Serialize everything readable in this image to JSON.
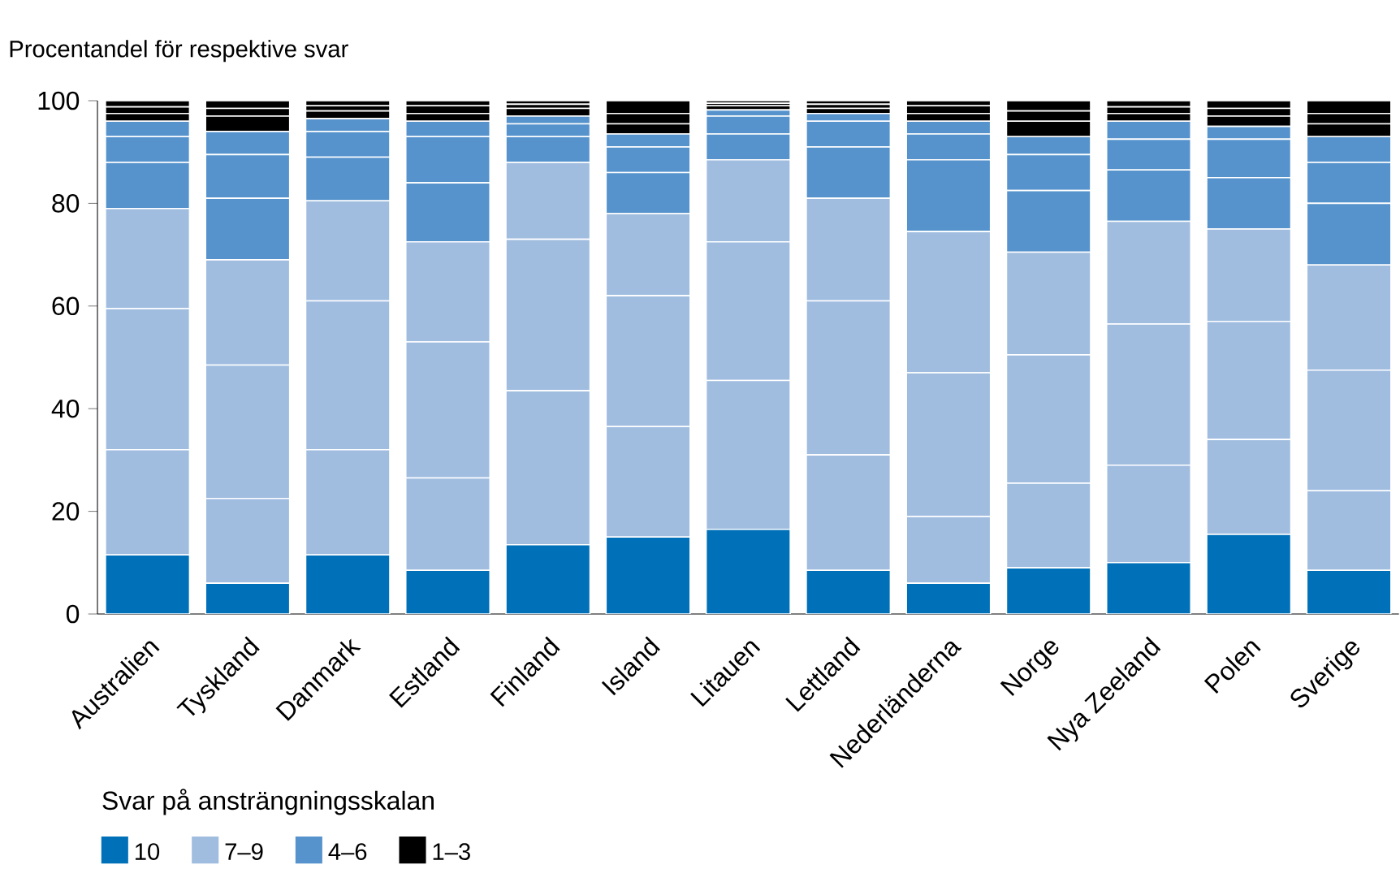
{
  "chart_data": {
    "type": "bar",
    "stacked": true,
    "ylabel": "Procentandel för respektive svar",
    "legend_title": "Svar på ansträngningsskalan",
    "categories": [
      "Australien",
      "Tyskland",
      "Danmark",
      "Estland",
      "Finland",
      "Island",
      "Litauen",
      "Lettland",
      "Nederländerna",
      "Norge",
      "Nya Zeeland",
      "Polen",
      "Sverige"
    ],
    "series": [
      {
        "name": "10",
        "color": "#0070b8",
        "values": [
          11.5,
          6,
          11.5,
          8.5,
          13.5,
          15,
          16.5,
          8.5,
          6,
          9,
          10,
          15.5,
          8.5
        ]
      },
      {
        "name": "7–9",
        "color": "#a0bde0",
        "values": [
          20.5,
          16.5,
          20.5,
          18,
          30,
          21.5,
          29,
          22.5,
          13,
          16.5,
          19,
          18.5,
          15.5
        ]
      },
      {
        "color": "#a0bde0",
        "values": [
          27.5,
          26,
          29,
          26.5,
          29.5,
          25.5,
          27,
          30,
          28,
          25,
          27.5,
          23,
          23.5
        ]
      },
      {
        "color": "#a0bde0",
        "values": [
          19.5,
          20.5,
          19.5,
          19.5,
          15,
          16,
          16,
          20,
          27.5,
          20,
          20,
          18,
          20.5
        ]
      },
      {
        "name": "4–6",
        "color": "#5693cc",
        "values": [
          9,
          12,
          8.5,
          11.5,
          5,
          8,
          5,
          10,
          14,
          12,
          10,
          10,
          12
        ]
      },
      {
        "color": "#5693cc",
        "values": [
          5,
          8.5,
          5,
          9,
          2.5,
          5,
          3.5,
          5,
          5,
          7,
          6,
          7.5,
          8
        ]
      },
      {
        "color": "#5693cc",
        "values": [
          3,
          4.5,
          2.5,
          3,
          1.5,
          2.5,
          1.2,
          1.5,
          2.5,
          3.5,
          3.5,
          2.5,
          5
        ]
      },
      {
        "name": "1–3",
        "color": "#000000",
        "values": [
          1.5,
          3,
          1.5,
          1.5,
          1.5,
          2,
          0.8,
          1,
          1.5,
          3,
          1.5,
          2,
          2.5
        ]
      },
      {
        "color": "#000000",
        "values": [
          1.3,
          1.5,
          1,
          1.5,
          0.8,
          2,
          0.5,
          0.8,
          1.5,
          2,
          1.3,
          1.5,
          2
        ]
      },
      {
        "color": "#000000",
        "values": [
          1.2,
          1.5,
          1,
          1,
          0.7,
          2.5,
          0.5,
          0.7,
          1,
          2,
          1.2,
          1.5,
          2.5
        ]
      }
    ],
    "ylim": [
      0,
      100
    ],
    "yticks": [
      0,
      20,
      40,
      60,
      80,
      100
    ],
    "grid": false,
    "legend": "bottom left"
  }
}
